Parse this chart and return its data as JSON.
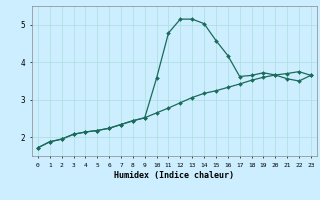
{
  "title": "",
  "xlabel": "Humidex (Indice chaleur)",
  "bg_color": "#cceeff",
  "line_color": "#1a6b5a",
  "grid_color": "#aadddd",
  "x_data": [
    0,
    1,
    2,
    3,
    4,
    5,
    6,
    7,
    8,
    9,
    10,
    11,
    12,
    13,
    14,
    15,
    16,
    17,
    18,
    19,
    20,
    21,
    22,
    23
  ],
  "curve1_y": [
    1.72,
    1.88,
    1.95,
    2.08,
    2.14,
    2.18,
    2.24,
    2.34,
    2.44,
    2.52,
    3.58,
    4.78,
    5.15,
    5.15,
    5.03,
    4.58,
    4.18,
    3.62,
    3.65,
    3.72,
    3.66,
    3.56,
    3.5,
    3.65
  ],
  "curve2_y": [
    1.72,
    1.88,
    1.95,
    2.08,
    2.14,
    2.18,
    2.24,
    2.34,
    2.44,
    2.52,
    2.65,
    2.78,
    2.92,
    3.06,
    3.17,
    3.24,
    3.33,
    3.42,
    3.52,
    3.6,
    3.66,
    3.7,
    3.75,
    3.65
  ],
  "ylim": [
    1.5,
    5.5
  ],
  "yticks": [
    2,
    3,
    4,
    5
  ],
  "xlim": [
    -0.5,
    23.5
  ],
  "xticks": [
    0,
    1,
    2,
    3,
    4,
    5,
    6,
    7,
    8,
    9,
    10,
    11,
    12,
    13,
    14,
    15,
    16,
    17,
    18,
    19,
    20,
    21,
    22,
    23
  ],
  "figsize": [
    3.2,
    2.0
  ],
  "dpi": 100
}
